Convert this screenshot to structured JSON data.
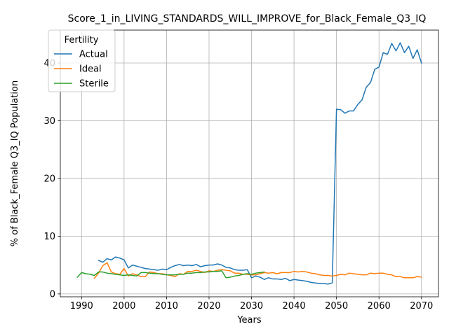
{
  "chart_data": {
    "type": "line",
    "title": "Score_1_in_LIVING_STANDARDS_WILL_IMPROVE_for_Black_Female_Q3_IQ",
    "xlabel": "Years",
    "ylabel": "% of Black_Female Q3_IQ Population",
    "xlim": [
      1985,
      2074
    ],
    "ylim": [
      -0.5,
      45.7
    ],
    "xticks": [
      1990,
      2000,
      2010,
      2020,
      2030,
      2040,
      2050,
      2060,
      2070
    ],
    "yticks": [
      0,
      10,
      20,
      30,
      40
    ],
    "grid": true,
    "legend": {
      "title": "Fertility",
      "placement": "top-left"
    },
    "series": [
      {
        "name": "Actual",
        "color": "#1f77b4",
        "x": [
          1994,
          1995,
          1996,
          1997,
          1998,
          1999,
          2000,
          2001,
          2002,
          2003,
          2004,
          2005,
          2006,
          2007,
          2008,
          2009,
          2010,
          2011,
          2012,
          2013,
          2014,
          2015,
          2016,
          2017,
          2018,
          2019,
          2020,
          2021,
          2022,
          2023,
          2024,
          2025,
          2026,
          2027,
          2028,
          2029,
          2030,
          2031,
          2032,
          2033,
          2034,
          2035,
          2036,
          2037,
          2038,
          2039,
          2040,
          2041,
          2042,
          2043,
          2044,
          2045,
          2046,
          2047,
          2048,
          2049,
          2050,
          2051,
          2052,
          2053,
          2054,
          2055,
          2056,
          2057,
          2058,
          2059,
          2060,
          2061,
          2062,
          2063,
          2064,
          2065,
          2066,
          2067,
          2068,
          2069,
          2070
        ],
        "y": [
          5.8,
          5.5,
          6.1,
          5.9,
          6.4,
          6.2,
          5.9,
          4.5,
          5.0,
          4.8,
          4.6,
          4.4,
          4.3,
          4.2,
          4.1,
          4.3,
          4.2,
          4.6,
          4.9,
          5.1,
          4.9,
          5.0,
          4.9,
          5.1,
          4.7,
          4.9,
          5.0,
          5.0,
          5.2,
          5.0,
          4.6,
          4.5,
          4.2,
          4.1,
          4.1,
          4.2,
          2.8,
          3.1,
          2.9,
          2.5,
          2.8,
          2.6,
          2.6,
          2.5,
          2.7,
          2.3,
          2.5,
          2.4,
          2.3,
          2.2,
          2.0,
          1.9,
          1.8,
          1.8,
          1.7,
          1.9,
          32.0,
          31.9,
          31.3,
          31.7,
          31.7,
          32.8,
          33.6,
          35.8,
          36.6,
          38.9,
          39.3,
          41.8,
          41.5,
          43.4,
          42.1,
          43.5,
          41.8,
          42.9,
          40.8,
          42.3,
          40.0
        ]
      },
      {
        "name": "Ideal",
        "color": "#ff7f0e",
        "x": [
          1993,
          1994,
          1995,
          1996,
          1997,
          1998,
          1999,
          2000,
          2001,
          2002,
          2003,
          2004,
          2005,
          2006,
          2007,
          2008,
          2009,
          2010,
          2011,
          2012,
          2013,
          2014,
          2015,
          2016,
          2017,
          2018,
          2019,
          2020,
          2021,
          2022,
          2023,
          2024,
          2025,
          2026,
          2027,
          2028,
          2029,
          2030,
          2031,
          2032,
          2033,
          2034,
          2035,
          2036,
          2037,
          2038,
          2039,
          2040,
          2041,
          2042,
          2043,
          2044,
          2045,
          2046,
          2047,
          2048,
          2049,
          2050,
          2051,
          2052,
          2053,
          2054,
          2055,
          2056,
          2057,
          2058,
          2059,
          2060,
          2061,
          2062,
          2063,
          2064,
          2065,
          2066,
          2067,
          2068,
          2069,
          2070
        ],
        "y": [
          2.7,
          3.6,
          4.9,
          5.4,
          3.8,
          3.5,
          3.4,
          4.4,
          3.1,
          3.5,
          3.3,
          3.0,
          3.0,
          3.8,
          3.7,
          3.5,
          3.5,
          3.3,
          3.2,
          3.0,
          3.5,
          3.4,
          3.9,
          3.9,
          4.1,
          3.9,
          3.7,
          4.0,
          3.9,
          4.1,
          4.2,
          4.1,
          4.0,
          3.6,
          3.6,
          3.4,
          3.4,
          3.3,
          3.3,
          3.5,
          3.7,
          3.6,
          3.7,
          3.5,
          3.7,
          3.7,
          3.7,
          3.9,
          3.8,
          3.9,
          3.8,
          3.6,
          3.5,
          3.3,
          3.2,
          3.2,
          3.1,
          3.2,
          3.4,
          3.3,
          3.6,
          3.5,
          3.4,
          3.3,
          3.3,
          3.6,
          3.5,
          3.6,
          3.6,
          3.4,
          3.3,
          3.0,
          3.0,
          2.8,
          2.8,
          2.8,
          3.0,
          2.9
        ]
      },
      {
        "name": "Sterile",
        "color": "#2ca02c",
        "x": [
          1989,
          1990,
          1991,
          1992,
          1993,
          1994,
          1995,
          1996,
          1997,
          1998,
          1999,
          2000,
          2001,
          2002,
          2003,
          2004,
          2005,
          2006,
          2007,
          2008,
          2009,
          2010,
          2011,
          2012,
          2013,
          2014,
          2015,
          2016,
          2017,
          2018,
          2019,
          2020,
          2021,
          2022,
          2023,
          2024,
          2025,
          2026,
          2027,
          2028,
          2029,
          2030,
          2031,
          2032,
          2033
        ],
        "y": [
          2.9,
          3.7,
          3.5,
          3.4,
          3.2,
          3.8,
          3.8,
          3.6,
          3.5,
          3.4,
          3.3,
          3.2,
          3.3,
          3.2,
          3.1,
          3.7,
          3.7,
          3.6,
          3.5,
          3.5,
          3.4,
          3.3,
          3.3,
          3.3,
          3.4,
          3.4,
          3.6,
          3.6,
          3.7,
          3.7,
          3.8,
          3.8,
          3.9,
          3.9,
          4.0,
          2.8,
          2.9,
          3.1,
          3.2,
          3.4,
          3.5,
          3.4,
          3.6,
          3.7,
          3.8
        ]
      }
    ]
  }
}
